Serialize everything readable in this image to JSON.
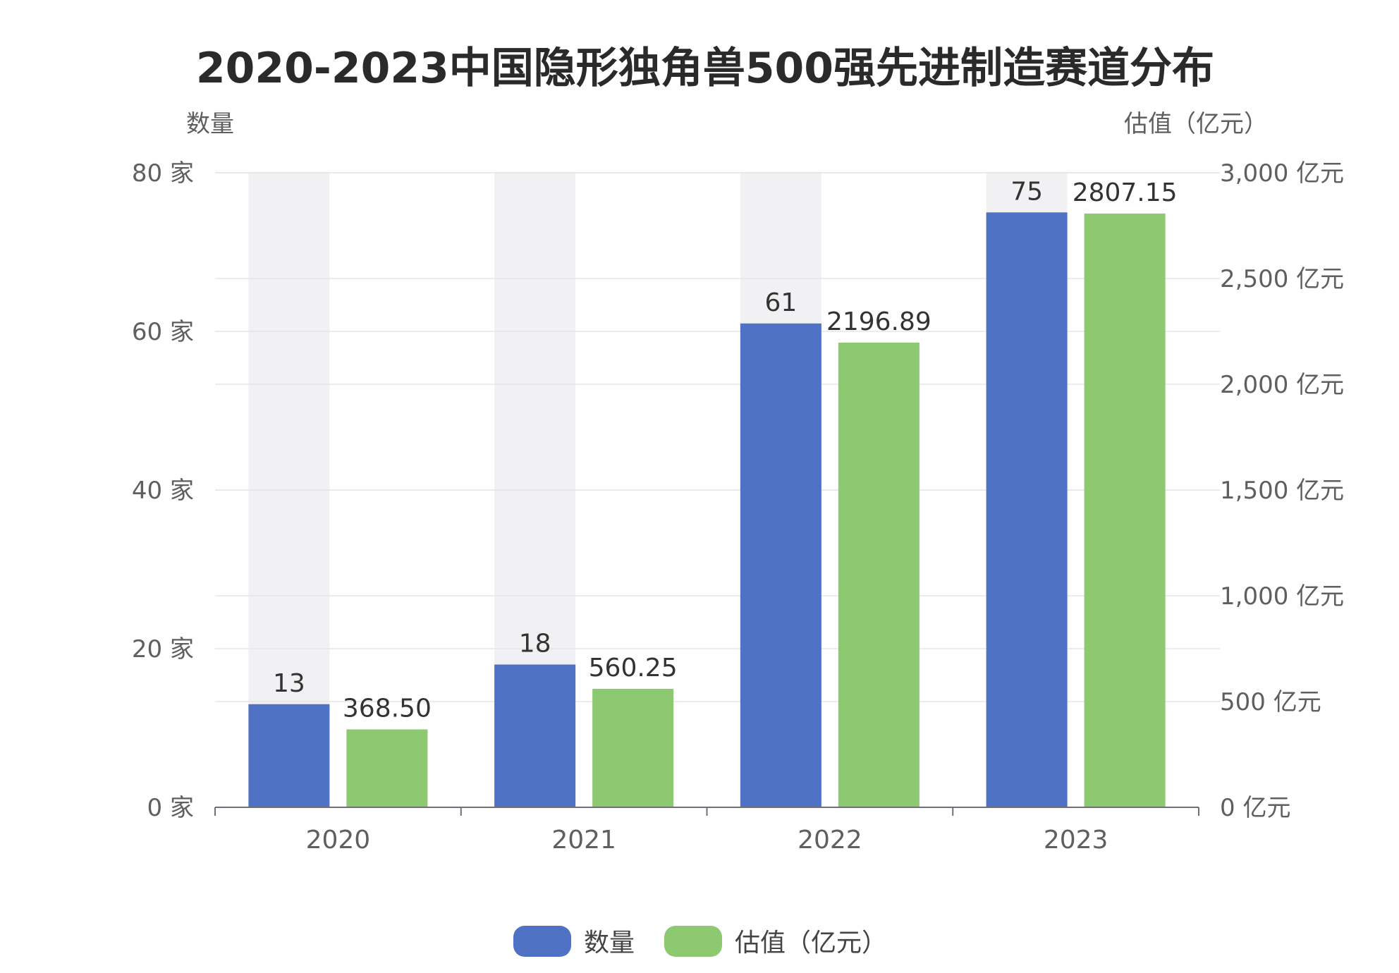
{
  "chart_data": {
    "type": "bar",
    "title": "2020-2023中国隐形独角兽500强先进制造赛道分布",
    "categories": [
      "2020",
      "2021",
      "2022",
      "2023"
    ],
    "left_axis": {
      "title": "数量",
      "unit": "家",
      "ylim": [
        0,
        80
      ],
      "tick_values": [
        0,
        20,
        40,
        60,
        80
      ],
      "tick_labels": [
        "0 家",
        "20 家",
        "40 家",
        "60 家",
        "80 家"
      ]
    },
    "right_axis": {
      "title": "估值（亿元）",
      "unit": "亿元",
      "ylim": [
        0,
        3000
      ],
      "tick_values": [
        0,
        500,
        1000,
        1500,
        2000,
        2500,
        3000
      ],
      "tick_labels": [
        "0 亿元",
        "500 亿元",
        "1,000 亿元",
        "1,500 亿元",
        "2,000 亿元",
        "2,500 亿元",
        "3,000 亿元"
      ]
    },
    "series": [
      {
        "name": "数量",
        "axis": "left",
        "color": "#4f72c4",
        "values": [
          13,
          18,
          61,
          75
        ],
        "labels": [
          "13",
          "18",
          "61",
          "75"
        ]
      },
      {
        "name": "估值（亿元）",
        "axis": "right",
        "color": "#8dc971",
        "values": [
          368.5,
          560.25,
          2196.89,
          2807.15
        ],
        "labels": [
          "368.50",
          "560.25",
          "2196.89",
          "2807.15"
        ]
      }
    ],
    "grid": true,
    "highlight_background": true,
    "legend_position": "bottom-center"
  }
}
